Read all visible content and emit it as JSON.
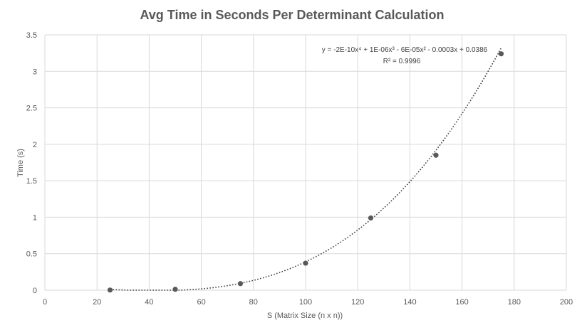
{
  "chart_data": {
    "type": "scatter",
    "title": "Avg Time in Seconds Per Determinant Calculation",
    "xlabel": "S (Matrix Size (n x n))",
    "ylabel": "Time (s)",
    "xlim": [
      0,
      200
    ],
    "ylim": [
      0,
      3.5
    ],
    "x_ticks": [
      0,
      20,
      40,
      60,
      80,
      100,
      120,
      140,
      160,
      180,
      200
    ],
    "y_ticks": [
      0,
      0.5,
      1,
      1.5,
      2,
      2.5,
      3,
      3.5
    ],
    "x_tick_labels": [
      "0",
      "20",
      "40",
      "60",
      "80",
      "100",
      "120",
      "140",
      "160",
      "180",
      "200"
    ],
    "y_tick_labels": [
      "0",
      "0.5",
      "1",
      "1.5",
      "2",
      "2.5",
      "3",
      "3.5"
    ],
    "grid": true,
    "legend": "none",
    "series": [
      {
        "x": [
          25,
          50,
          75,
          100,
          125,
          150,
          175
        ],
        "y": [
          0.002,
          0.012,
          0.09,
          0.37,
          0.99,
          1.85,
          3.24
        ],
        "color": "#595959"
      }
    ],
    "trendline": {
      "type": "polynomial",
      "order": 4,
      "coefficients": [
        -2e-10,
        1e-06,
        -6e-05,
        -0.0003,
        0.0386
      ],
      "equation": "y = -2E-10x⁴ + 1E-06x³ - 6E-05x² - 0.0003x + 0.0386",
      "r_squared": "R² = 0.9996",
      "color": "#404040",
      "style": "dotted"
    }
  }
}
